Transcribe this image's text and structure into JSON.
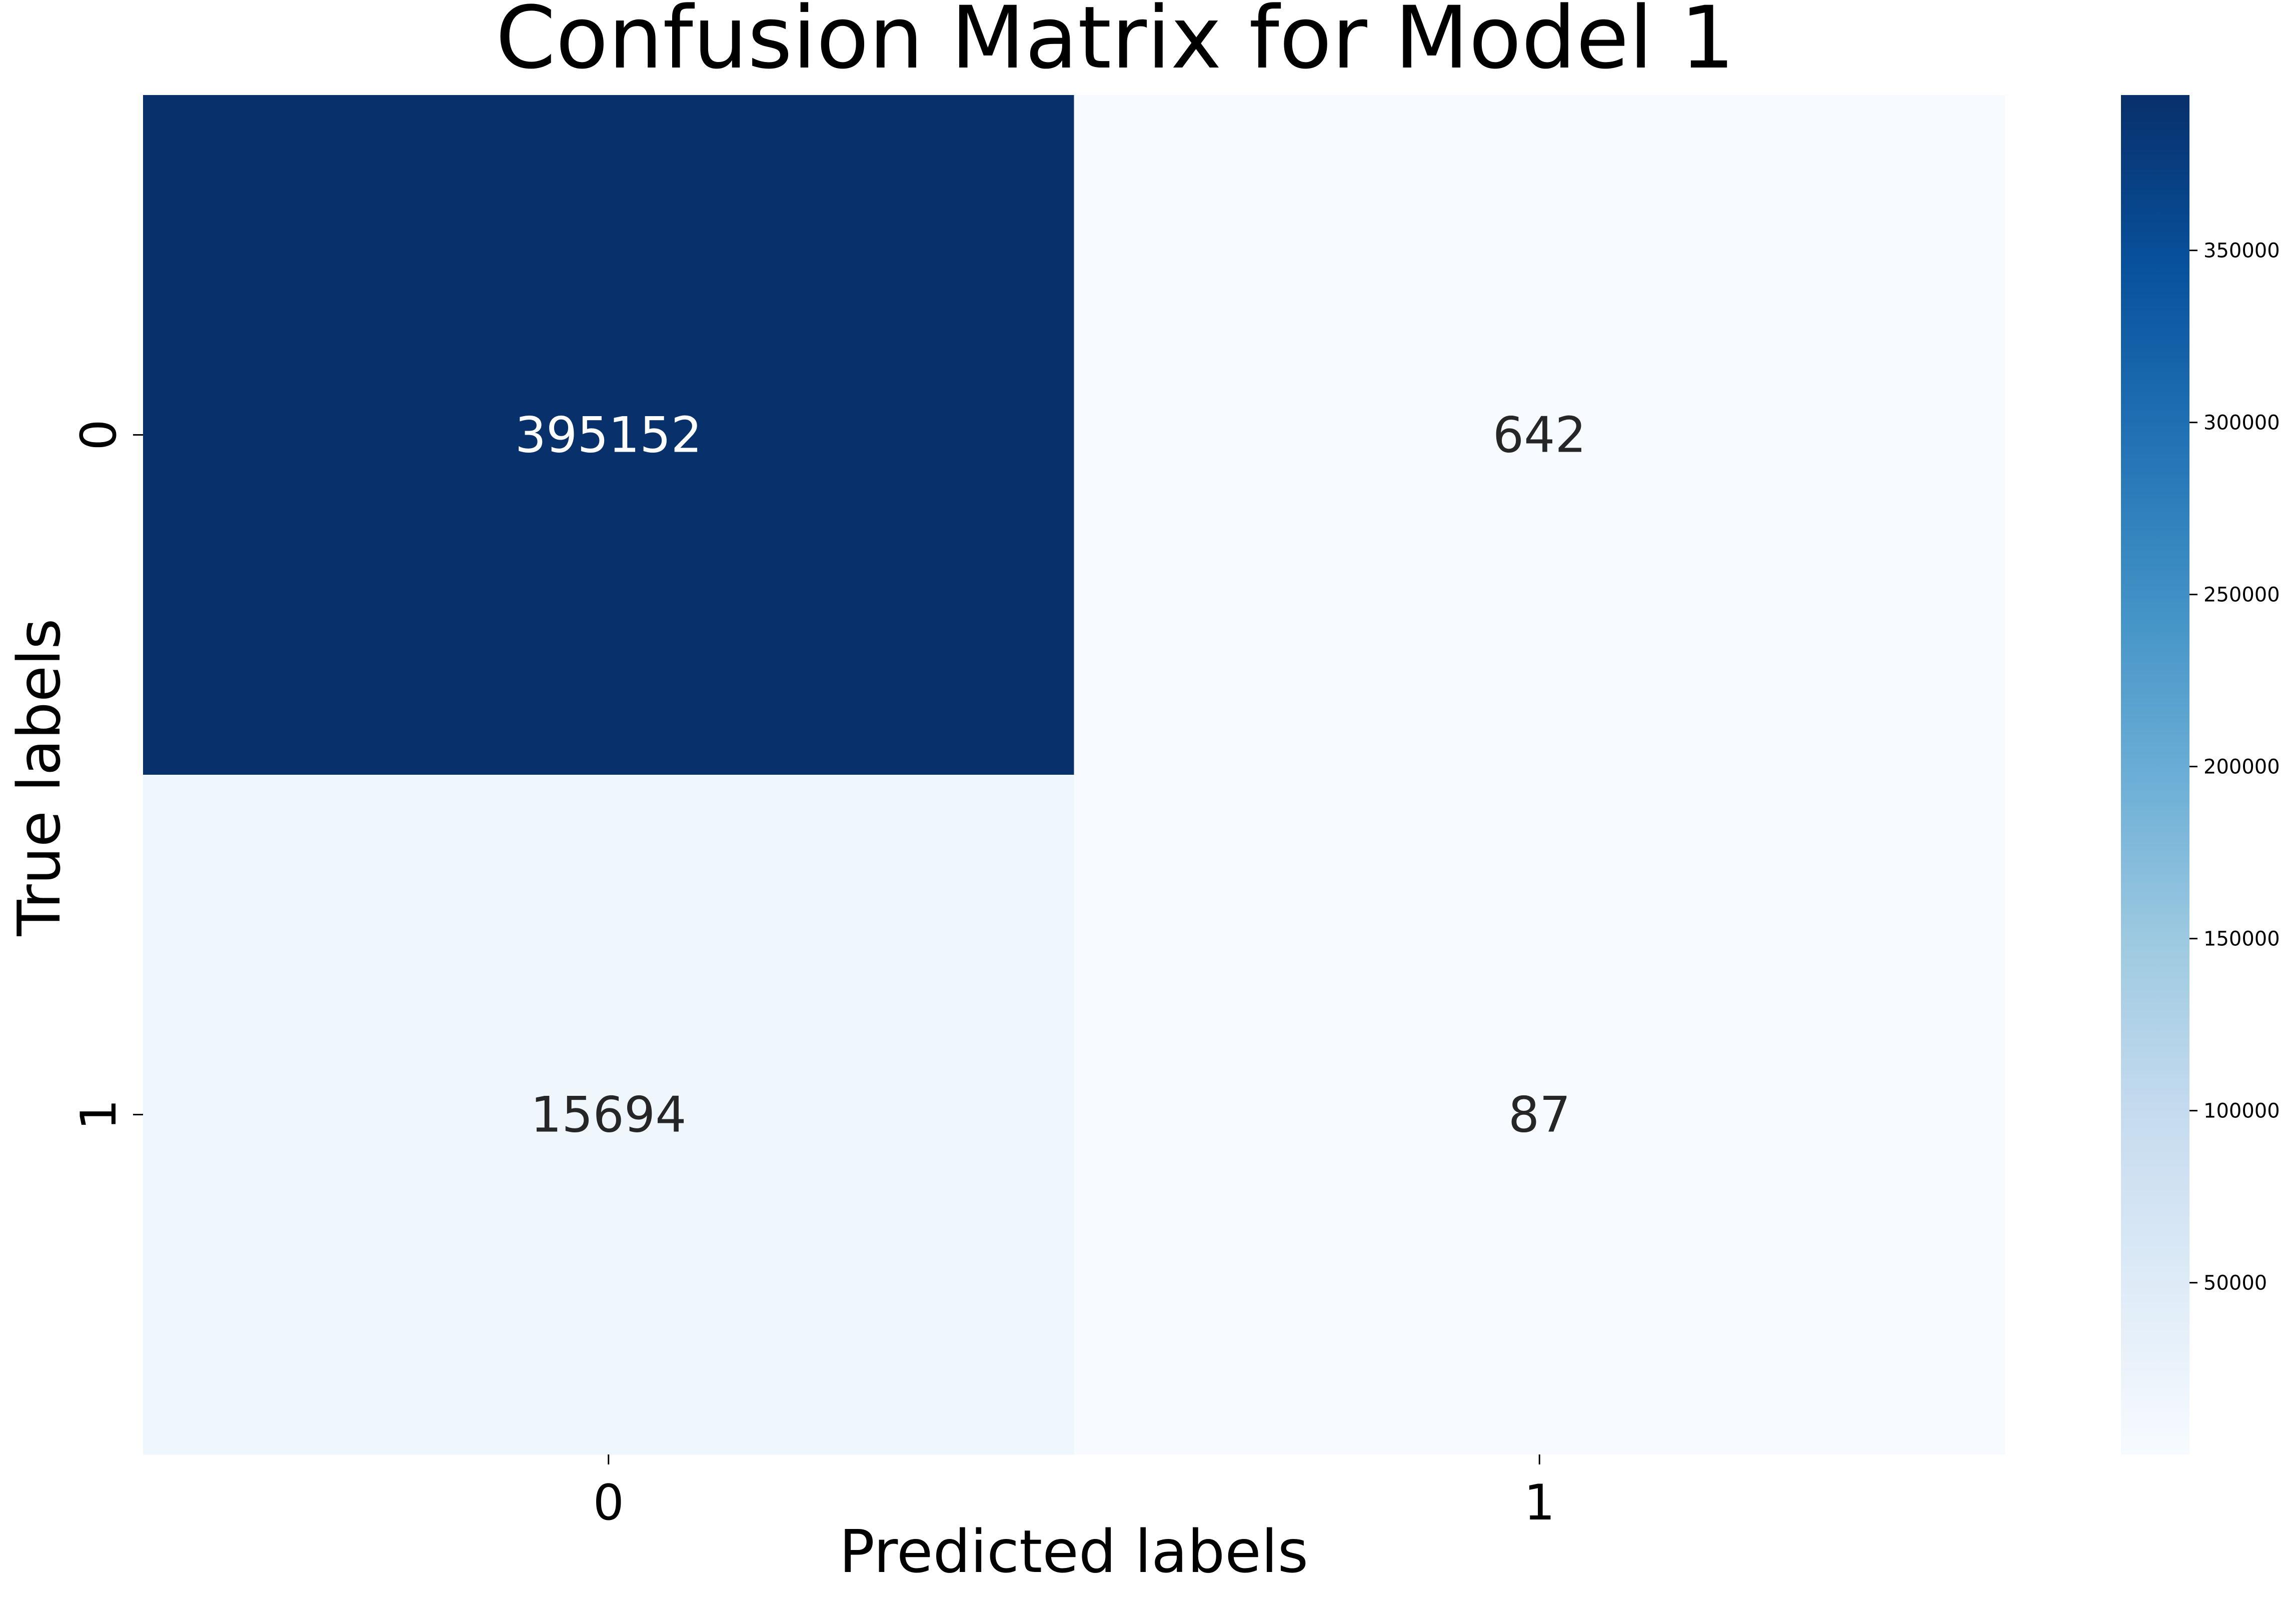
{
  "chart_data": {
    "type": "heatmap",
    "title": "Confusion Matrix for Model 1",
    "xlabel": "Predicted labels",
    "ylabel": "True labels",
    "x_categories": [
      "0",
      "1"
    ],
    "y_categories": [
      "0",
      "1"
    ],
    "values": [
      [
        395152,
        642
      ],
      [
        15694,
        87
      ]
    ],
    "cell_labels": [
      [
        "395152",
        "642"
      ],
      [
        "15694",
        "87"
      ]
    ],
    "colormap": "Blues",
    "colorbar": {
      "min": 87,
      "max": 395152,
      "ticks": [
        50000,
        100000,
        150000,
        200000,
        250000,
        300000,
        350000
      ],
      "tick_labels": [
        "50000",
        "100000",
        "150000",
        "200000",
        "250000",
        "300000",
        "350000"
      ]
    },
    "colormap_stops": [
      "#f7fbff",
      "#deebf7",
      "#c6dbef",
      "#9ecae1",
      "#6baed6",
      "#4292c6",
      "#2171b5",
      "#08519c",
      "#08306b"
    ],
    "colors": {
      "text_light": "#ffffff",
      "text_dark": "#262626",
      "axis": "#000000"
    }
  }
}
